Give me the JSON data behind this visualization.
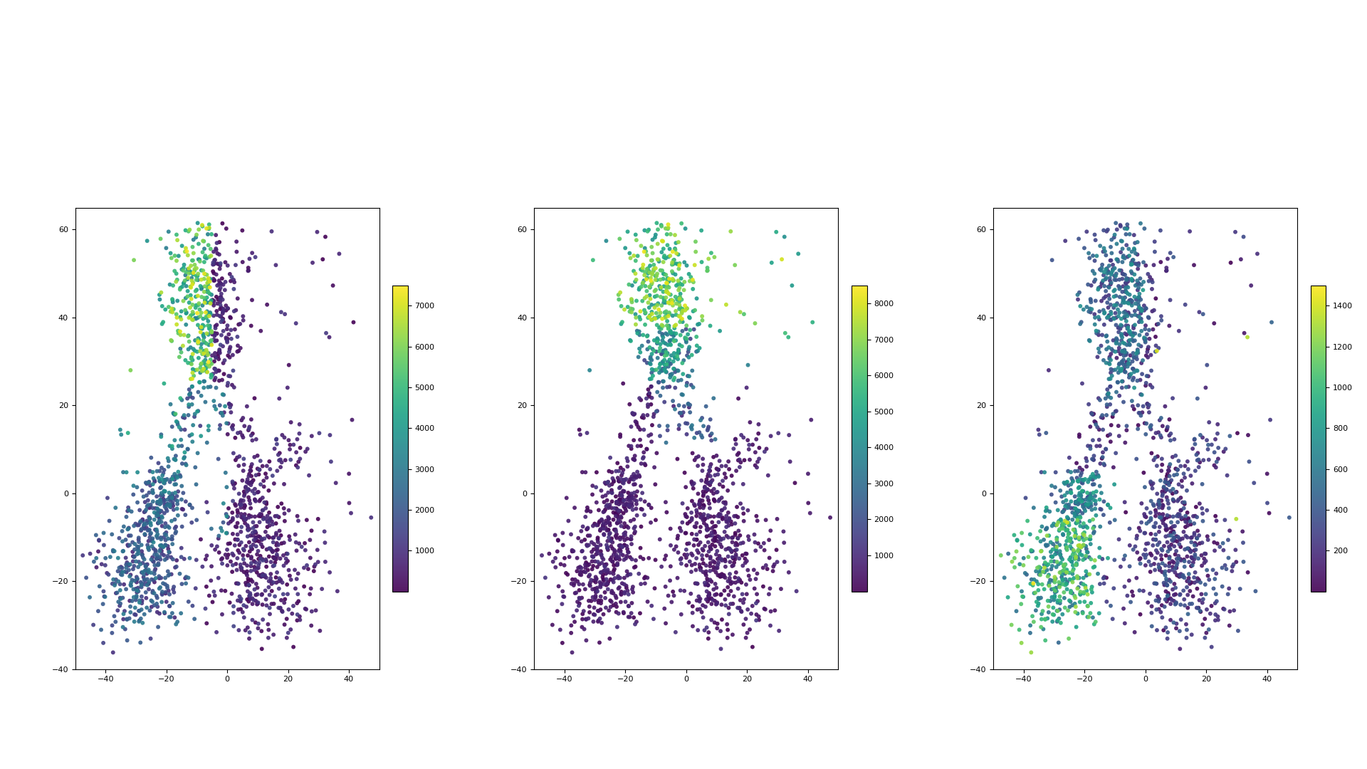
{
  "seed": 42,
  "xlim": [
    -50,
    50
  ],
  "ylim": [
    -40,
    65
  ],
  "xticks": [
    -40,
    -20,
    0,
    20,
    40
  ],
  "yticks": [
    -40,
    -20,
    0,
    20,
    40,
    60
  ],
  "colormap": "viridis",
  "plots": [
    {
      "vmin": 0,
      "vmax": 7500,
      "cbar_ticks": [
        1000,
        2000,
        3000,
        4000,
        5000,
        6000,
        7000
      ]
    },
    {
      "vmin": 0,
      "vmax": 8500,
      "cbar_ticks": [
        1000,
        2000,
        3000,
        4000,
        5000,
        6000,
        7000,
        8000
      ]
    },
    {
      "vmin": 0,
      "vmax": 1500,
      "cbar_ticks": [
        200,
        400,
        600,
        800,
        1000,
        1200,
        1400
      ]
    }
  ],
  "fig_bgcolor": "#ffffff",
  "point_size": 18,
  "point_alpha": 0.9
}
